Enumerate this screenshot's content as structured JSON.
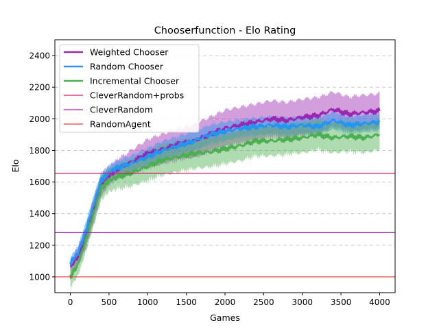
{
  "chart_data": {
    "type": "line",
    "title": "Chooserfunction - Elo Rating",
    "xlabel": "Games",
    "ylabel": "Elo",
    "xlim": [
      -200,
      4200
    ],
    "ylim": [
      900,
      2500
    ],
    "x_ticks": [
      0,
      500,
      1000,
      1500,
      2000,
      2500,
      3000,
      3500,
      4000
    ],
    "y_ticks": [
      1000,
      1200,
      1400,
      1600,
      1800,
      2000,
      2200,
      2400
    ],
    "grid": "horizontal-dashed",
    "legend_position": "upper-left",
    "series": [
      {
        "name": "Weighted Chooser",
        "color": "#9b27b0",
        "x": [
          0,
          100,
          200,
          300,
          400,
          500,
          600,
          800,
          1000,
          1200,
          1400,
          1600,
          1800,
          2000,
          2200,
          2400,
          2600,
          2800,
          3000,
          3200,
          3400,
          3600,
          3800,
          4000
        ],
        "values": [
          1060,
          1130,
          1250,
          1420,
          1580,
          1640,
          1680,
          1730,
          1780,
          1810,
          1840,
          1860,
          1900,
          1940,
          1960,
          1980,
          2000,
          1990,
          2010,
          2020,
          2060,
          2030,
          2040,
          2050
        ],
        "band": [
          45,
          60,
          70,
          80,
          70,
          60,
          60,
          75,
          90,
          95,
          100,
          105,
          110,
          115,
          115,
          115,
          115,
          115,
          115,
          115,
          110,
          110,
          110,
          110
        ]
      },
      {
        "name": "Random Chooser",
        "color": "#2196f3",
        "x": [
          0,
          100,
          200,
          300,
          400,
          500,
          600,
          800,
          1000,
          1200,
          1400,
          1600,
          1800,
          2000,
          2200,
          2400,
          2600,
          2800,
          3000,
          3200,
          3400,
          3600,
          3800,
          4000
        ],
        "values": [
          1090,
          1150,
          1290,
          1450,
          1610,
          1660,
          1690,
          1720,
          1760,
          1800,
          1830,
          1860,
          1900,
          1920,
          1940,
          1950,
          1960,
          1950,
          1960,
          1950,
          1990,
          1960,
          1970,
          1980
        ],
        "band": [
          35,
          45,
          55,
          60,
          50,
          45,
          45,
          50,
          55,
          60,
          60,
          60,
          60,
          60,
          55,
          55,
          55,
          55,
          55,
          55,
          55,
          55,
          55,
          55
        ]
      },
      {
        "name": "Incremental Chooser",
        "color": "#4caf50",
        "x": [
          0,
          100,
          200,
          300,
          400,
          500,
          600,
          800,
          1000,
          1200,
          1400,
          1600,
          1800,
          2000,
          2200,
          2400,
          2600,
          2800,
          3000,
          3200,
          3400,
          3600,
          3800,
          4000
        ],
        "values": [
          1000,
          1080,
          1230,
          1400,
          1560,
          1610,
          1630,
          1660,
          1700,
          1740,
          1760,
          1780,
          1790,
          1810,
          1830,
          1860,
          1860,
          1870,
          1880,
          1900,
          1880,
          1890,
          1880,
          1900
        ],
        "band": [
          65,
          70,
          75,
          80,
          75,
          70,
          75,
          85,
          90,
          95,
          95,
          95,
          95,
          95,
          95,
          95,
          95,
          95,
          95,
          95,
          95,
          95,
          95,
          95
        ]
      }
    ],
    "reference_lines": [
      {
        "name": "CleverRandom+probs",
        "color": "#d81b60",
        "y": 1655
      },
      {
        "name": "CleverRandom",
        "color": "#a020b0",
        "y": 1280
      },
      {
        "name": "RandomAgent",
        "color": "#e53935",
        "y": 1000
      }
    ]
  }
}
